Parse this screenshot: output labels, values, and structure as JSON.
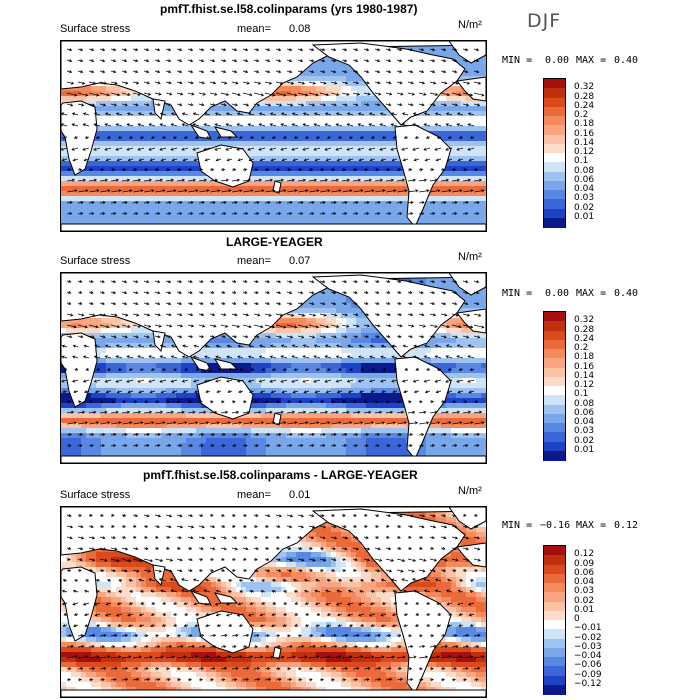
{
  "season": "DJF",
  "unit": "N/m²",
  "colors": {
    "land": "#ffffff",
    "coast": "#000000",
    "arrow": "#000000"
  },
  "panels": [
    {
      "id": "top",
      "title": "pmfT.fhist.se.l58.colinparams (yrs 1980-1987)",
      "field_label": "Surface stress",
      "mean_label": "mean=",
      "mean_value": "0.08",
      "min_label": "MIN =",
      "min_value": "0.00",
      "max_label": "MAX =",
      "max_value": "0.40",
      "levels": [
        "0.32",
        "0.28",
        "0.24",
        "0.2",
        "0.18",
        "0.16",
        "0.14",
        "0.12",
        "0.1",
        "0.08",
        "0.06",
        "0.04",
        "0.03",
        "0.02",
        "0.01"
      ],
      "colors": [
        "#a50f0f",
        "#c0300c",
        "#da4a1c",
        "#ea6a3a",
        "#f58a5c",
        "#f9a582",
        "#fbc3a6",
        "#fcdcc8",
        "#ffffff",
        "#d0e4f8",
        "#9fc3f0",
        "#7aa6ea",
        "#5888e2",
        "#3a66d8",
        "#1e43c7",
        "#0a1a8c"
      ]
    },
    {
      "id": "middle",
      "title": "LARGE-YEAGER",
      "field_label": "Surface stress",
      "mean_label": "mean=",
      "mean_value": "0.07",
      "min_label": "MIN =",
      "min_value": "0.00",
      "max_label": "MAX =",
      "max_value": "0.40",
      "levels": [
        "0.32",
        "0.28",
        "0.24",
        "0.2",
        "0.18",
        "0.16",
        "0.14",
        "0.12",
        "0.1",
        "0.08",
        "0.06",
        "0.04",
        "0.03",
        "0.02",
        "0.01"
      ],
      "colors": [
        "#a50f0f",
        "#c0300c",
        "#da4a1c",
        "#ea6a3a",
        "#f58a5c",
        "#f9a582",
        "#fbc3a6",
        "#fcdcc8",
        "#ffffff",
        "#d0e4f8",
        "#9fc3f0",
        "#7aa6ea",
        "#5888e2",
        "#3a66d8",
        "#1e43c7",
        "#0a1a8c"
      ]
    },
    {
      "id": "bottom",
      "title": "pmfT.fhist.se.l58.colinparams - LARGE-YEAGER",
      "field_label": "Surface stress",
      "mean_label": "mean=",
      "mean_value": "0.01",
      "min_label": "MIN =",
      "min_value": "−0.16",
      "max_label": "MAX =",
      "max_value": "0.12",
      "levels": [
        "0.12",
        "0.09",
        "0.06",
        "0.04",
        "0.03",
        "0.02",
        "0.01",
        "0",
        "−0.01",
        "−0.02",
        "−0.03",
        "−0.04",
        "−0.06",
        "−0.09",
        "−0.12"
      ],
      "colors": [
        "#a50f0f",
        "#c0300c",
        "#da4a1c",
        "#ea6a3a",
        "#f58a5c",
        "#f9a582",
        "#fbc3a6",
        "#fcdcc8",
        "#ffffff",
        "#d0e4f8",
        "#9fc3f0",
        "#7aa6ea",
        "#5888e2",
        "#3a66d8",
        "#1e43c7",
        "#0a1a8c"
      ]
    }
  ],
  "chart_data": [
    {
      "type": "heatmap",
      "title": "pmfT.fhist.se.l58.colinparams (yrs 1980-1987)",
      "variable": "Surface stress",
      "season": "DJF",
      "units": "N/m²",
      "mean": 0.08,
      "min": 0.0,
      "max": 0.4,
      "contour_levels": [
        0.01,
        0.02,
        0.03,
        0.04,
        0.06,
        0.08,
        0.1,
        0.12,
        0.14,
        0.16,
        0.18,
        0.2,
        0.24,
        0.28,
        0.32
      ],
      "overlay": "wind stress vectors",
      "projection": "global lat-lon, Pacific centered"
    },
    {
      "type": "heatmap",
      "title": "LARGE-YEAGER",
      "variable": "Surface stress",
      "season": "DJF",
      "units": "N/m²",
      "mean": 0.07,
      "min": 0.0,
      "max": 0.4,
      "contour_levels": [
        0.01,
        0.02,
        0.03,
        0.04,
        0.06,
        0.08,
        0.1,
        0.12,
        0.14,
        0.16,
        0.18,
        0.2,
        0.24,
        0.28,
        0.32
      ],
      "overlay": "wind stress vectors",
      "projection": "global lat-lon, Pacific centered"
    },
    {
      "type": "heatmap",
      "title": "pmfT.fhist.se.l58.colinparams - LARGE-YEAGER",
      "variable": "Surface stress",
      "season": "DJF",
      "units": "N/m²",
      "mean": 0.01,
      "min": -0.16,
      "max": 0.12,
      "contour_levels": [
        -0.12,
        -0.09,
        -0.06,
        -0.04,
        -0.03,
        -0.02,
        -0.01,
        0,
        0.01,
        0.02,
        0.03,
        0.04,
        0.06,
        0.09,
        0.12
      ],
      "overlay": "wind stress difference vectors",
      "projection": "global lat-lon, Pacific centered"
    }
  ]
}
